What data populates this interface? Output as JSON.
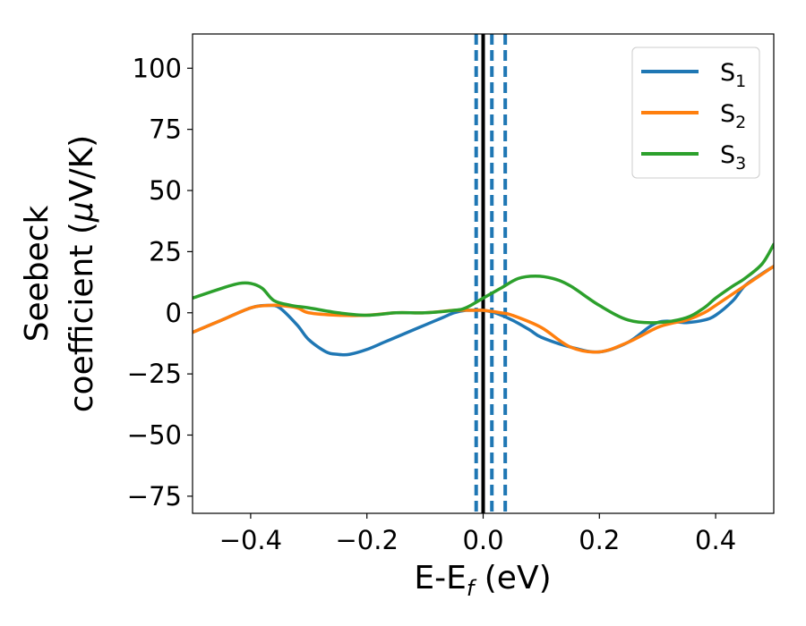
{
  "chart_data": {
    "type": "line",
    "title": "",
    "xlabel": {
      "base": "E-E",
      "sub": "f",
      "suffix": " (eV)"
    },
    "ylabel": {
      "line1": "Seebeck",
      "line2_prefix": "coefficient  (",
      "mu": "μ",
      "line2_suffix": "V/K)"
    },
    "xlim": [
      -0.5,
      0.5
    ],
    "ylim": [
      -82,
      114
    ],
    "xticks": [
      -0.4,
      -0.2,
      0.0,
      0.2,
      0.4
    ],
    "xtick_labels": [
      "−0.4",
      "−0.2",
      "0.0",
      "0.2",
      "0.4"
    ],
    "yticks": [
      -75,
      -50,
      -25,
      0,
      25,
      50,
      75,
      100
    ],
    "ytick_labels": [
      "−75",
      "−50",
      "−25",
      "0",
      "25",
      "50",
      "75",
      "100"
    ],
    "grid": false,
    "legend_position": "top-right",
    "vlines": [
      {
        "x": 0.0,
        "style": "solid",
        "color": "#000000"
      },
      {
        "x": -0.012,
        "style": "dashed",
        "color": "#1f77b4"
      },
      {
        "x": 0.015,
        "style": "dashed",
        "color": "#1f77b4"
      },
      {
        "x": 0.038,
        "style": "dashed",
        "color": "#1f77b4"
      }
    ],
    "series": [
      {
        "name": {
          "base": "S",
          "sub": "1"
        },
        "color": "#1f77b4",
        "x": [
          -0.5,
          -0.45,
          -0.4,
          -0.37,
          -0.35,
          -0.32,
          -0.3,
          -0.27,
          -0.25,
          -0.23,
          -0.2,
          -0.17,
          -0.15,
          -0.12,
          -0.1,
          -0.07,
          -0.05,
          -0.03,
          -0.01,
          0.0,
          0.02,
          0.05,
          0.08,
          0.1,
          0.15,
          0.2,
          0.25,
          0.3,
          0.35,
          0.38,
          0.4,
          0.43,
          0.45,
          0.48,
          0.5
        ],
        "y": [
          -8,
          -3,
          2,
          3,
          2,
          -5,
          -11,
          -16,
          -17,
          -17,
          -15,
          -12,
          -10,
          -7,
          -5,
          -2,
          0,
          1,
          1,
          1,
          0,
          -3,
          -7,
          -10,
          -14,
          -16,
          -12,
          -4,
          -4,
          -3,
          -1,
          5,
          11,
          16,
          19
        ]
      },
      {
        "name": {
          "base": "S",
          "sub": "2"
        },
        "color": "#ff7f0e",
        "x": [
          -0.5,
          -0.45,
          -0.4,
          -0.37,
          -0.35,
          -0.32,
          -0.3,
          -0.25,
          -0.2,
          -0.15,
          -0.1,
          -0.05,
          -0.02,
          0.0,
          0.03,
          0.05,
          0.1,
          0.15,
          0.2,
          0.25,
          0.3,
          0.33,
          0.35,
          0.38,
          0.4,
          0.45,
          0.5
        ],
        "y": [
          -8,
          -3,
          2,
          3,
          3,
          2,
          0,
          -1,
          -1,
          0,
          0,
          1,
          1,
          1,
          0,
          -1,
          -6,
          -14,
          -16,
          -12,
          -6,
          -4,
          -3,
          0,
          3,
          11,
          19
        ]
      },
      {
        "name": {
          "base": "S",
          "sub": "3"
        },
        "color": "#2ca02c",
        "x": [
          -0.5,
          -0.45,
          -0.42,
          -0.4,
          -0.38,
          -0.36,
          -0.33,
          -0.3,
          -0.25,
          -0.2,
          -0.15,
          -0.1,
          -0.05,
          -0.03,
          0.0,
          0.03,
          0.06,
          0.09,
          0.12,
          0.15,
          0.2,
          0.25,
          0.3,
          0.35,
          0.38,
          0.4,
          0.43,
          0.45,
          0.48,
          0.5
        ],
        "y": [
          6,
          10,
          12,
          12,
          10,
          5,
          3,
          2,
          0,
          -1,
          0,
          0,
          1,
          2,
          6,
          10,
          14,
          15,
          14,
          11,
          3,
          -3,
          -4,
          -2,
          2,
          6,
          11,
          14,
          20,
          28
        ]
      }
    ]
  }
}
